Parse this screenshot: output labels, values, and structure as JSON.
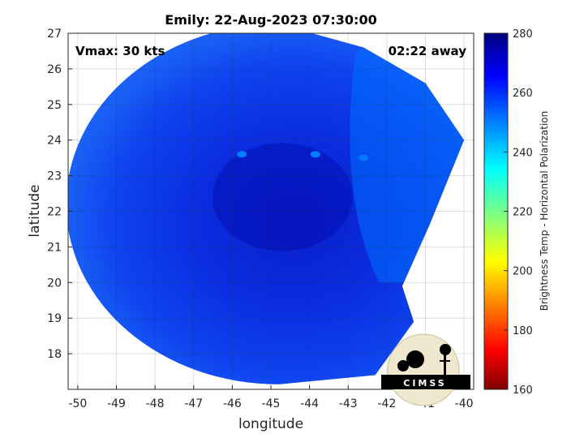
{
  "chart_data": {
    "type": "heatmap",
    "title": "Emily: 22-Aug-2023 07:30:00",
    "xlabel": "longitude",
    "ylabel": "latitude",
    "xlim": [
      -50.25,
      -39.75
    ],
    "ylim": [
      17,
      27
    ],
    "xticks": [
      -50,
      -49,
      -48,
      -47,
      -46,
      -45,
      -44,
      -43,
      -42,
      -41,
      -40
    ],
    "yticks": [
      18,
      19,
      20,
      21,
      22,
      23,
      24,
      25,
      26,
      27
    ],
    "grid": true,
    "annotations": {
      "top_left": "Vmax: 30 kts",
      "top_right": "02:22 away"
    },
    "colorbar": {
      "label": "Brightness Temp - Horizontal Polarization",
      "range": [
        160,
        280
      ],
      "ticks": [
        160,
        180,
        200,
        220,
        240,
        260,
        280
      ],
      "colormap": "jet"
    },
    "swath": {
      "center_lon": -44.8,
      "center_lat": 22.2,
      "radius_deg": 5.5,
      "typical_value": 265,
      "edge_value": 252,
      "core_value": 270,
      "warm_spots": [
        {
          "lon": -45.75,
          "lat": 23.6,
          "value": 248
        },
        {
          "lon": -43.85,
          "lat": 23.6,
          "value": 248
        },
        {
          "lon": -42.6,
          "lat": 23.5,
          "value": 250
        }
      ]
    }
  },
  "logo": {
    "text": "CIMSS"
  },
  "colors": {
    "jet": [
      "#800000",
      "#ff0000",
      "#ffff00",
      "#00ffff",
      "#0000ff",
      "#000080"
    ]
  }
}
